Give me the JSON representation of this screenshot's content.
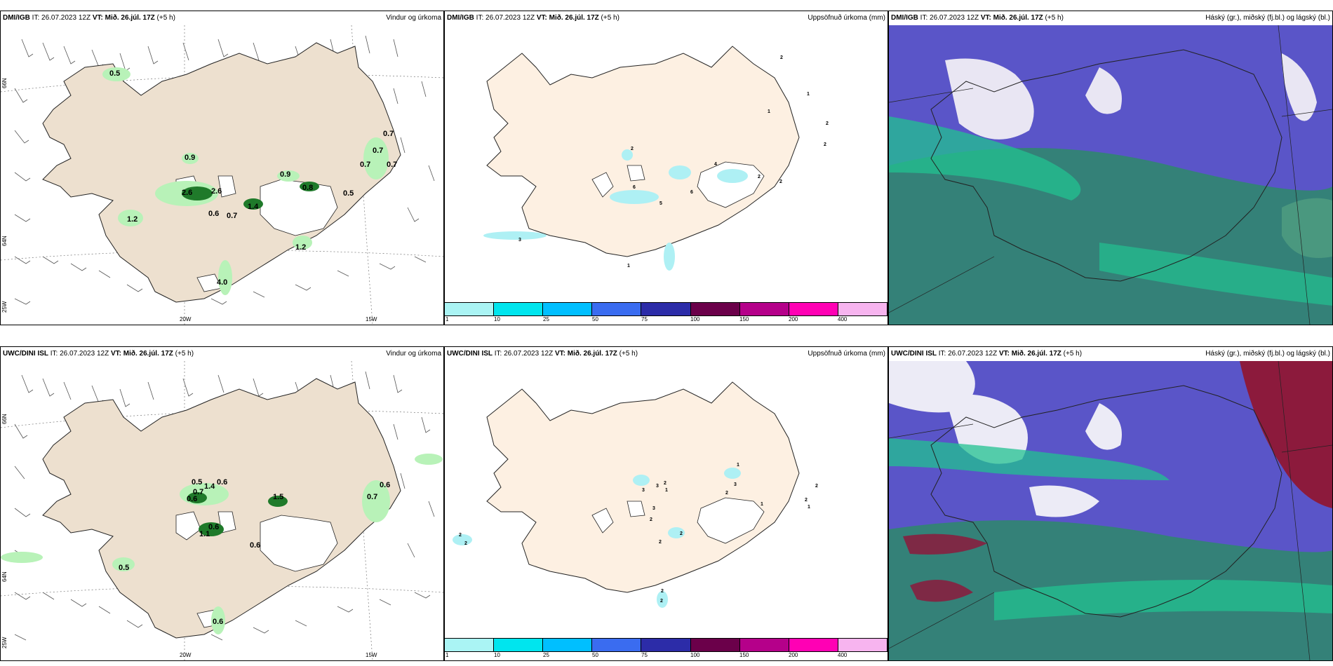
{
  "rows": [
    {
      "model": "DMI/IGB",
      "it": "IT: 26.07.2023 12Z",
      "vt_label": "VT: Mið. 26.júl. 17Z",
      "lead": "(+5 h)",
      "wind_title": "Vindur og úrkoma",
      "precip_title": "Uppsöfnuð úrkoma (mm)",
      "cloud_title": "Háský (gr.), miðský (fj.bl.) og lágský (bl.)",
      "wind_labels": [
        "0.5",
        "0.9",
        "2.6",
        "2.6",
        "1.2",
        "0.6",
        "0.7",
        "1.4",
        "0.9",
        "0.8",
        "0.5",
        "0.7",
        "0.7",
        "0.7",
        "0.7",
        "1.2",
        "4.0"
      ],
      "precip_labels": [
        "2",
        "1",
        "1",
        "2",
        "2",
        "2",
        "2",
        "6",
        "4",
        "6",
        "5",
        "3",
        "1",
        "2"
      ]
    },
    {
      "model": "UWC/DINI ISL",
      "it": "IT: 26.07.2023 12Z",
      "vt_label": "VT: Mið. 26.júl. 17Z",
      "lead": "(+5 h)",
      "wind_title": "Vindur og úrkoma",
      "precip_title": "Uppsöfnuð úrkoma (mm)",
      "cloud_title": "Háský (gr.), miðský (fj.bl.) og lágský (bl.)",
      "wind_labels": [
        "0.5",
        "0.7",
        "0.6",
        "1.4",
        "0.6",
        "0.6",
        "1.5",
        "0.6",
        "0.7",
        "1.1",
        "0.6",
        "0.5",
        "0.6"
      ],
      "precip_labels": [
        "1",
        "3",
        "3",
        "2",
        "1",
        "3",
        "2",
        "1",
        "2",
        "2",
        "1",
        "2",
        "3",
        "2",
        "2",
        "2",
        "2",
        "2",
        "2"
      ]
    }
  ],
  "axes": {
    "lon_20": "20W",
    "lon_15": "15W",
    "lat_66": "66N",
    "lat_64": "64N",
    "lon_25": "25W"
  },
  "colorbar": {
    "ticks": [
      "1",
      "10",
      "25",
      "50",
      "75",
      "100",
      "150",
      "200",
      "400"
    ],
    "colors": [
      "#aaf4f4",
      "#00e5ee",
      "#00bfff",
      "#3a6cf0",
      "#2c2ca8",
      "#6b004a",
      "#b5008a",
      "#ff00b4",
      "#f7b4ef"
    ]
  },
  "colors": {
    "land": "#ede0cf",
    "land_precip": "#fdf0e2",
    "precip_light": "#aef0f4",
    "rain_light": "#b8f2b8",
    "rain_dark": "#1f7a2a",
    "cloud_high": "#5a55c8",
    "cloud_mid": "#2e8a6a",
    "cloud_low": "#22c290",
    "cloud_red": "#8c1a3c"
  }
}
